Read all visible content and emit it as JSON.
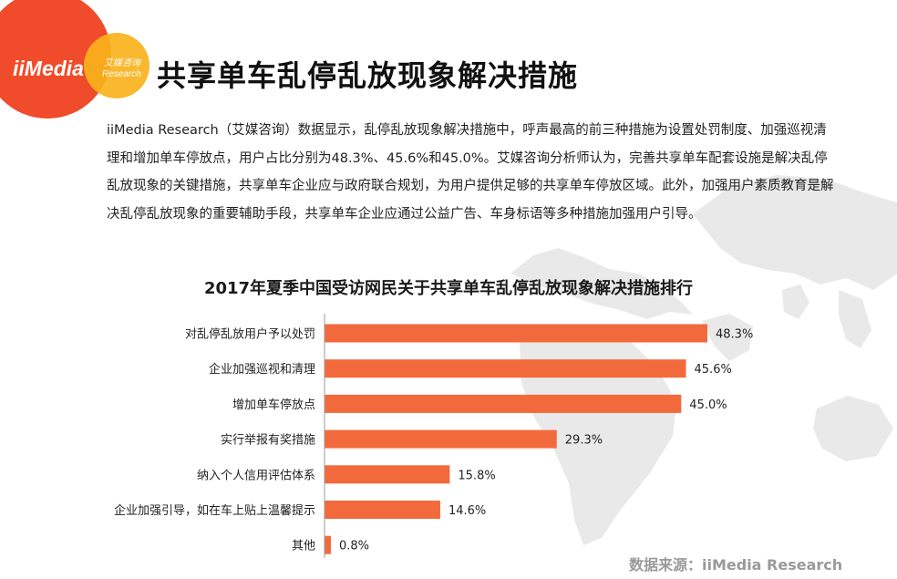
{
  "logo": {
    "brand": "iiMedia",
    "sub_cn": "艾媒咨询",
    "sub_en": "Research"
  },
  "header": {
    "title": "共享单车乱停乱放现象解决措施"
  },
  "intro": "iiMedia Research（艾媒咨询）数据显示，乱停乱放现象解决措施中，呼声最高的前三种措施为设置处罚制度、加强巡视清理和增加单车停放点，用户占比分别为48.3%、45.6%和45.0%。艾媒咨询分析师认为，完善共享单车配套设施是解决乱停乱放现象的关键措施，共享单车企业应与政府联合规划，为用户提供足够的共享单车停放区域。此外，加强用户素质教育是解决乱停乱放现象的重要辅助手段，共享单车企业应通过公益广告、车身标语等多种措施加强用户引导。",
  "source": "数据来源：iiMedia Research",
  "colors": {
    "bar": "#f26a3c",
    "logo_red": "#f04b2a",
    "logo_yellow": "#f9b21b",
    "map": "#e9e9e9"
  },
  "chart_data": {
    "type": "bar",
    "orientation": "horizontal",
    "title": "2017年夏季中国受访网民关于共享单车乱停乱放现象解决措施排行",
    "categories": [
      "对乱停乱放用户予以处罚",
      "企业加强巡视和清理",
      "增加单车停放点",
      "实行举报有奖措施",
      "纳入个人信用评估体系",
      "企业加强引导，如在车上贴上温馨提示",
      "其他"
    ],
    "values": [
      48.3,
      45.6,
      45.0,
      29.3,
      15.8,
      14.6,
      0.8
    ],
    "labels": [
      "48.3%",
      "45.6%",
      "45.0%",
      "29.3%",
      "15.8%",
      "14.6%",
      "0.8%"
    ],
    "unit": "%",
    "xlim": [
      0,
      100
    ],
    "grid": false,
    "legend": "none"
  }
}
